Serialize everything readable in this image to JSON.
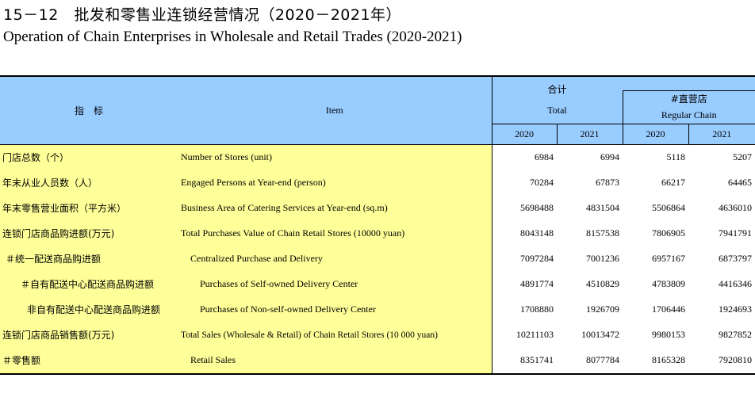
{
  "title_cn": "15－12　批发和零售业连锁经营情况（2020－2021年）",
  "title_en": "Operation of Chain Enterprises in Wholesale and Retail Trades (2020-2021)",
  "header": {
    "indicator_cn": "指　标",
    "item_en": "Item",
    "total_cn": "合计",
    "total_en": "Total",
    "regular_cn": "#直营店",
    "regular_en": "Regular Chain",
    "years": [
      "2020",
      "2021",
      "2020",
      "2021"
    ]
  },
  "rows": [
    {
      "cn": "门店总数（个）",
      "en": "Number of Stores (unit)",
      "v": [
        "6984",
        "6994",
        "5118",
        "5207"
      ]
    },
    {
      "cn": "年末从业人员数（人）",
      "en": "Engaged Persons at Year-end (person)",
      "v": [
        "70284",
        "67873",
        "66217",
        "64465"
      ]
    },
    {
      "cn": "年末零售营业面积（平方米）",
      "en": "Business Area of Catering Services at Year-end (sq.m)",
      "v": [
        "5698488",
        "4831504",
        "5506864",
        "4636010"
      ]
    },
    {
      "cn": "连锁门店商品购进额(万元)",
      "en": "Total Purchases Value of Chain Retail Stores (10000 yuan)",
      "v": [
        "8043148",
        "8157538",
        "7806905",
        "7941791"
      ]
    },
    {
      "cn": "＃统一配送商品购进额",
      "en": "Centralized Purchase and Delivery",
      "v": [
        "7097284",
        "7001236",
        "6957167",
        "6873797"
      ]
    },
    {
      "cn": "＃自有配送中心配送商品购进额",
      "en": "Purchases of Self-owned Delivery Center",
      "v": [
        "4891774",
        "4510829",
        "4783809",
        "4416346"
      ]
    },
    {
      "cn": "非自有配送中心配送商品购进额",
      "en": "Purchases of Non-self-owned Delivery Center",
      "v": [
        "1708880",
        "1926709",
        "1706446",
        "1924693"
      ]
    },
    {
      "cn": "连锁门店商品销售额(万元)",
      "en": "Total  Sales (Wholesale & Retail) of Chain Retail Stores (10 000 yuan)",
      "v": [
        "10211103",
        "10013472",
        "9980153",
        "9827852"
      ]
    },
    {
      "cn": "＃零售额",
      "en": "Retail Sales",
      "v": [
        "8351741",
        "8077784",
        "8165328",
        "7920810"
      ]
    }
  ]
}
